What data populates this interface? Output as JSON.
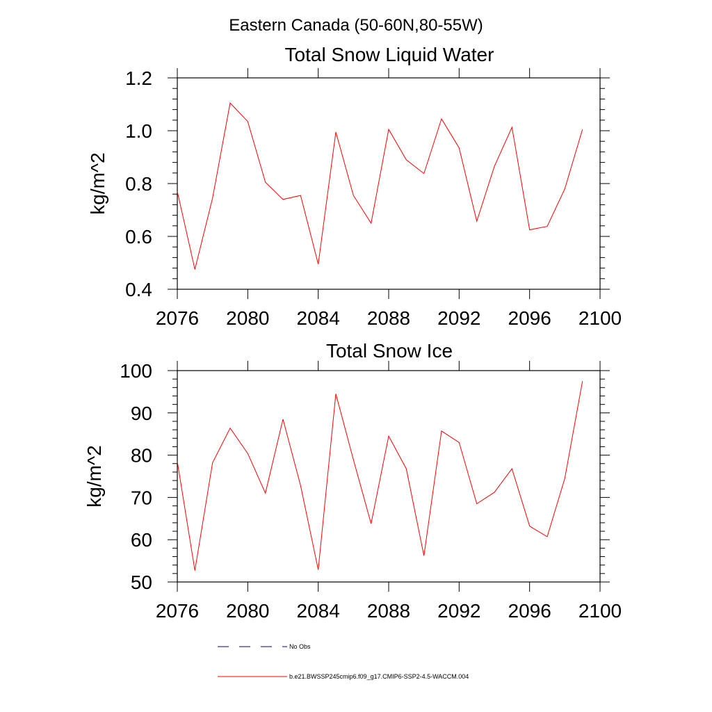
{
  "figure_title": "Eastern Canada (50-60N,80-55W)",
  "legend": {
    "items": [
      {
        "label": "No Obs",
        "color": "#000080",
        "style": "dashed"
      },
      {
        "label": "b.e21.BWSSP245cmip6.f09_g17.CMIP6-SSP2-4.5-WACCM.004",
        "color": "#ff0000",
        "style": "solid"
      }
    ]
  },
  "chart_data": [
    {
      "type": "line",
      "title": "Total Snow Liquid Water",
      "xlabel": "",
      "ylabel": "kg/m^2",
      "xlim": [
        2076,
        2100
      ],
      "ylim": [
        0.4,
        1.2
      ],
      "xticks": [
        "2076",
        "2080",
        "2084",
        "2088",
        "2092",
        "2096",
        "2100"
      ],
      "yticks": [
        "0.4",
        "0.6",
        "0.8",
        "1.0",
        "1.2"
      ],
      "grid": false,
      "series": [
        {
          "name": "b.e21.BWSSP245cmip6.f09_g17.CMIP6-SSP2-4.5-WACCM.004",
          "color": "#ff0000",
          "x": [
            2076,
            2077,
            2078,
            2079,
            2080,
            2081,
            2082,
            2083,
            2084,
            2085,
            2086,
            2087,
            2088,
            2089,
            2090,
            2091,
            2092,
            2093,
            2094,
            2095,
            2096,
            2097,
            2098,
            2099
          ],
          "values": [
            0.77,
            0.475,
            0.745,
            1.105,
            1.035,
            0.805,
            0.74,
            0.755,
            0.495,
            0.995,
            0.755,
            0.65,
            1.005,
            0.89,
            0.838,
            1.045,
            0.935,
            0.657,
            0.865,
            1.013,
            0.625,
            0.638,
            0.78,
            1.005
          ]
        }
      ]
    },
    {
      "type": "line",
      "title": "Total Snow Ice",
      "xlabel": "",
      "ylabel": "kg/m^2",
      "xlim": [
        2076,
        2100
      ],
      "ylim": [
        50,
        100
      ],
      "xticks": [
        "2076",
        "2080",
        "2084",
        "2088",
        "2092",
        "2096",
        "2100"
      ],
      "yticks": [
        "50",
        "60",
        "70",
        "80",
        "90",
        "100"
      ],
      "grid": false,
      "series": [
        {
          "name": "b.e21.BWSSP245cmip6.f09_g17.CMIP6-SSP2-4.5-WACCM.004",
          "color": "#ff0000",
          "x": [
            2076,
            2077,
            2078,
            2079,
            2080,
            2081,
            2082,
            2083,
            2084,
            2085,
            2086,
            2087,
            2088,
            2089,
            2090,
            2091,
            2092,
            2093,
            2094,
            2095,
            2096,
            2097,
            2098,
            2099
          ],
          "values": [
            78.5,
            52.7,
            78.2,
            86.4,
            80.4,
            71.0,
            88.5,
            72.8,
            52.9,
            94.5,
            78.9,
            63.8,
            84.5,
            76.8,
            56.2,
            85.7,
            83.0,
            68.5,
            71.2,
            76.8,
            63.2,
            60.7,
            74.5,
            97.5
          ]
        }
      ]
    }
  ]
}
